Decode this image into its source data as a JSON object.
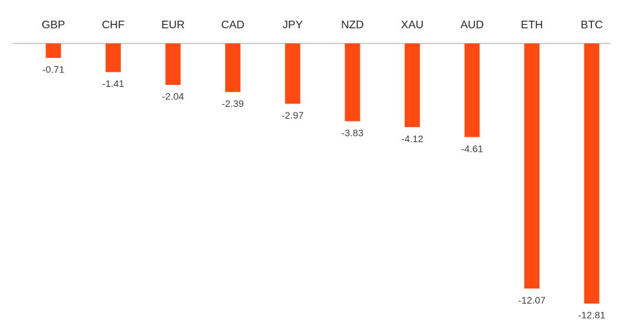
{
  "chart_data": {
    "type": "bar",
    "categories": [
      "GBP",
      "CHF",
      "EUR",
      "CAD",
      "JPY",
      "NZD",
      "XAU",
      "AUD",
      "ETH",
      "BTC"
    ],
    "values": [
      -0.71,
      -1.41,
      -2.04,
      -2.39,
      -2.97,
      -3.83,
      -4.12,
      -4.61,
      -12.07,
      -12.81
    ],
    "color": "#ff4a12"
  }
}
